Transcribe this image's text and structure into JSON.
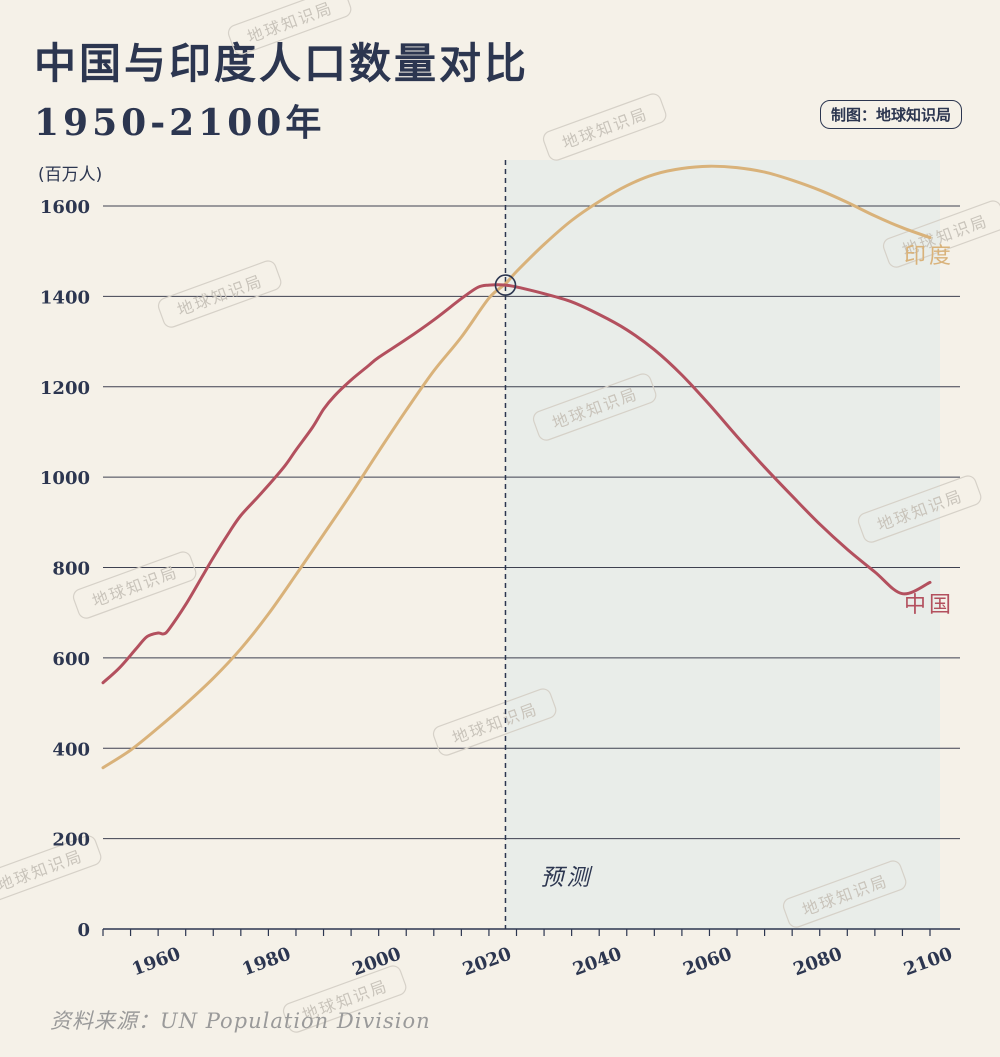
{
  "title": "中国与印度人口数量对比",
  "subtitle": "1950-2100年",
  "credit": "制图：地球知识局",
  "source": "资料来源：UN Population Division",
  "watermark_text": "地球知识局",
  "colors": {
    "background": "#f5f1e8",
    "forecast_shade": "#e9ede9",
    "china": "#b3505e",
    "india": "#d9b27a",
    "text": "#2c3650",
    "grid": "#3e4150"
  },
  "chart_data": {
    "type": "line",
    "title": "中国与印度人口数量对比",
    "subtitle": "1950-2100年",
    "ylabel": "(百万人)",
    "xlim": [
      1950,
      2100
    ],
    "ylim": [
      0,
      1700
    ],
    "x_ticks": [
      1960,
      1980,
      2000,
      2020,
      2040,
      2060,
      2080,
      2100
    ],
    "x_ticks_minor_step": 5,
    "y_ticks": [
      0,
      200,
      400,
      600,
      800,
      1000,
      1200,
      1400,
      1600
    ],
    "grid": "horizontal",
    "forecast_start": 2023,
    "forecast_label": "预测",
    "crossover_marker": {
      "x": 2023,
      "y": 1425
    },
    "series": [
      {
        "name": "中国",
        "color_key": "china",
        "points": [
          [
            1950,
            545
          ],
          [
            1953,
            578
          ],
          [
            1956,
            620
          ],
          [
            1958,
            647
          ],
          [
            1960,
            655
          ],
          [
            1961,
            653
          ],
          [
            1962,
            664
          ],
          [
            1965,
            718
          ],
          [
            1968,
            780
          ],
          [
            1970,
            822
          ],
          [
            1973,
            880
          ],
          [
            1975,
            915
          ],
          [
            1978,
            955
          ],
          [
            1980,
            982
          ],
          [
            1983,
            1025
          ],
          [
            1985,
            1060
          ],
          [
            1988,
            1110
          ],
          [
            1990,
            1150
          ],
          [
            1992,
            1180
          ],
          [
            1995,
            1215
          ],
          [
            1998,
            1245
          ],
          [
            2000,
            1265
          ],
          [
            2005,
            1305
          ],
          [
            2010,
            1348
          ],
          [
            2015,
            1395
          ],
          [
            2018,
            1420
          ],
          [
            2020,
            1425
          ],
          [
            2023,
            1425
          ],
          [
            2026,
            1418
          ],
          [
            2030,
            1406
          ],
          [
            2035,
            1388
          ],
          [
            2040,
            1360
          ],
          [
            2045,
            1326
          ],
          [
            2050,
            1282
          ],
          [
            2055,
            1226
          ],
          [
            2060,
            1160
          ],
          [
            2065,
            1090
          ],
          [
            2070,
            1022
          ],
          [
            2075,
            958
          ],
          [
            2080,
            896
          ],
          [
            2085,
            840
          ],
          [
            2090,
            790
          ],
          [
            2095,
            742
          ],
          [
            2100,
            767
          ]
        ]
      },
      {
        "name": "印度",
        "color_key": "india",
        "points": [
          [
            1950,
            357
          ],
          [
            1955,
            396
          ],
          [
            1960,
            445
          ],
          [
            1965,
            498
          ],
          [
            1970,
            555
          ],
          [
            1975,
            620
          ],
          [
            1980,
            697
          ],
          [
            1985,
            784
          ],
          [
            1990,
            873
          ],
          [
            1995,
            963
          ],
          [
            2000,
            1057
          ],
          [
            2005,
            1148
          ],
          [
            2010,
            1235
          ],
          [
            2015,
            1310
          ],
          [
            2020,
            1396
          ],
          [
            2023,
            1428
          ],
          [
            2025,
            1455
          ],
          [
            2030,
            1515
          ],
          [
            2035,
            1568
          ],
          [
            2040,
            1610
          ],
          [
            2045,
            1645
          ],
          [
            2050,
            1670
          ],
          [
            2055,
            1683
          ],
          [
            2060,
            1688
          ],
          [
            2065,
            1685
          ],
          [
            2070,
            1675
          ],
          [
            2075,
            1657
          ],
          [
            2080,
            1635
          ],
          [
            2085,
            1608
          ],
          [
            2090,
            1578
          ],
          [
            2095,
            1552
          ],
          [
            2100,
            1530
          ]
        ]
      }
    ]
  }
}
